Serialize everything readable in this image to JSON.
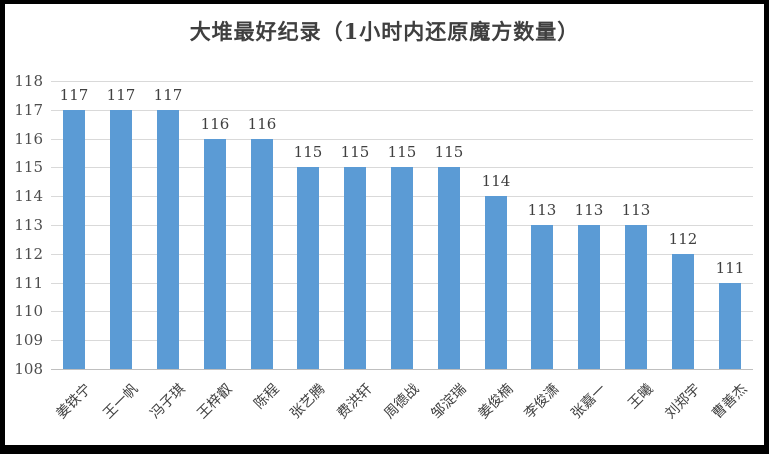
{
  "chart_data": {
    "type": "bar",
    "title": "大堆最好纪录（1小时内还原魔方数量）",
    "categories": [
      "姜铁宁",
      "王一帆",
      "冯子琪",
      "王梓叡",
      "陈程",
      "张艺腾",
      "费洪轩",
      "周德战",
      "邹淀瑞",
      "姜俊楠",
      "李俊潇",
      "张嘉一",
      "王曦",
      "刘郑宇",
      "曹善杰"
    ],
    "values": [
      117,
      117,
      117,
      116,
      116,
      115,
      115,
      115,
      115,
      114,
      113,
      113,
      113,
      112,
      111
    ],
    "xlabel": "",
    "ylabel": "",
    "ylim": [
      108,
      118
    ],
    "yticks": [
      108,
      109,
      110,
      111,
      112,
      113,
      114,
      115,
      116,
      117,
      118
    ],
    "grid": true,
    "legend_position": "none",
    "data_labels": true,
    "bar_color": "#5b9bd5",
    "gridline_color": "#d9d9d9",
    "axis_line_color": "#bfbfbf",
    "label_color": "#404040",
    "tick_label_color": "#4d4d4d",
    "frame_color": "#000000"
  }
}
